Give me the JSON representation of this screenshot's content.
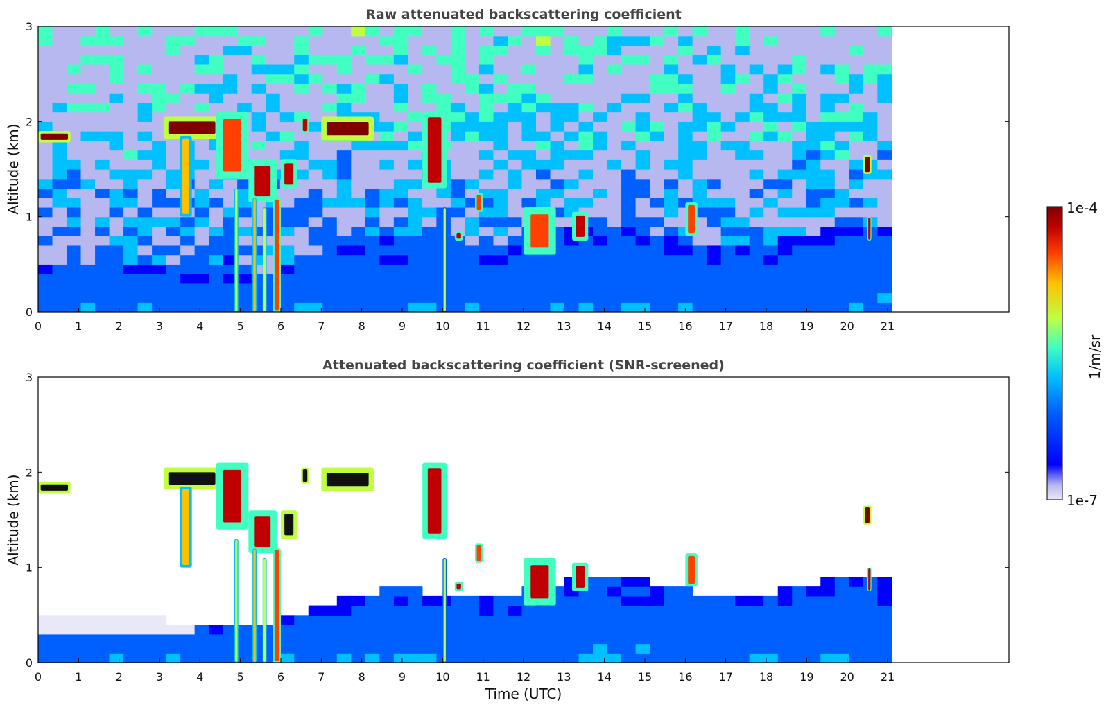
{
  "chart_data": [
    {
      "type": "heatmap",
      "title": "Raw attenuated backscattering coefficient",
      "xlabel": "",
      "ylabel": "Altitude (km)",
      "xlim": [
        0,
        24
      ],
      "ylim": [
        0,
        3
      ],
      "data_xmax": 21.1,
      "xticks": [
        "0",
        "1",
        "2",
        "3",
        "4",
        "5",
        "6",
        "7",
        "8",
        "9",
        "10",
        "11",
        "12",
        "13",
        "14",
        "15",
        "16",
        "17",
        "18",
        "19",
        "20",
        "21"
      ],
      "yticks": [
        "0",
        "1",
        "2",
        "3"
      ],
      "screened": false,
      "features": [
        {
          "kind": "cloud",
          "x0": 0.0,
          "x1": 0.8,
          "y0": 1.78,
          "y1": 1.9,
          "intensity": 0.95
        },
        {
          "kind": "cloud",
          "x0": 3.1,
          "x1": 4.5,
          "y0": 1.82,
          "y1": 2.05,
          "intensity": 0.95
        },
        {
          "kind": "cloud",
          "x0": 3.5,
          "x1": 3.8,
          "y0": 1.0,
          "y1": 1.85,
          "intensity": 0.7
        },
        {
          "kind": "cloud",
          "x0": 4.4,
          "x1": 5.2,
          "y0": 1.4,
          "y1": 2.1,
          "intensity": 0.8
        },
        {
          "kind": "cloud",
          "x0": 5.2,
          "x1": 5.9,
          "y0": 1.15,
          "y1": 1.6,
          "intensity": 0.85
        },
        {
          "kind": "cloud",
          "x0": 6.0,
          "x1": 6.4,
          "y0": 1.3,
          "y1": 1.6,
          "intensity": 0.85
        },
        {
          "kind": "cloud",
          "x0": 6.5,
          "x1": 6.7,
          "y0": 1.88,
          "y1": 2.05,
          "intensity": 0.9
        },
        {
          "kind": "cloud",
          "x0": 7.0,
          "x1": 8.3,
          "y0": 1.8,
          "y1": 2.05,
          "intensity": 0.97
        },
        {
          "kind": "cloud",
          "x0": 9.5,
          "x1": 10.1,
          "y0": 1.3,
          "y1": 2.1,
          "intensity": 0.9
        },
        {
          "kind": "cloud",
          "x0": 10.3,
          "x1": 10.5,
          "y0": 0.75,
          "y1": 0.85,
          "intensity": 0.85
        },
        {
          "kind": "cloud",
          "x0": 10.8,
          "x1": 11.0,
          "y0": 1.05,
          "y1": 1.25,
          "intensity": 0.8
        },
        {
          "kind": "cloud",
          "x0": 12.0,
          "x1": 12.8,
          "y0": 0.6,
          "y1": 1.1,
          "intensity": 0.8
        },
        {
          "kind": "cloud",
          "x0": 13.2,
          "x1": 13.6,
          "y0": 0.75,
          "y1": 1.05,
          "intensity": 0.85
        },
        {
          "kind": "cloud",
          "x0": 16.0,
          "x1": 16.3,
          "y0": 0.8,
          "y1": 1.15,
          "intensity": 0.75
        },
        {
          "kind": "cloud",
          "x0": 20.4,
          "x1": 20.6,
          "y0": 1.45,
          "y1": 1.65,
          "intensity": 0.95
        },
        {
          "kind": "cloud",
          "x0": 20.5,
          "x1": 20.6,
          "y0": 0.75,
          "y1": 1.0,
          "intensity": 0.9
        },
        {
          "kind": "column",
          "x0": 4.85,
          "x1": 4.95,
          "y0": 0.0,
          "y1": 1.3,
          "intensity": 0.6
        },
        {
          "kind": "column",
          "x0": 5.3,
          "x1": 5.4,
          "y0": 0.0,
          "y1": 1.2,
          "intensity": 0.65
        },
        {
          "kind": "column",
          "x0": 5.55,
          "x1": 5.65,
          "y0": 0.0,
          "y1": 1.1,
          "intensity": 0.6
        },
        {
          "kind": "column",
          "x0": 5.8,
          "x1": 6.0,
          "y0": 0.0,
          "y1": 1.2,
          "intensity": 0.8
        },
        {
          "kind": "column",
          "x0": 10.0,
          "x1": 10.1,
          "y0": 0.0,
          "y1": 1.1,
          "intensity": 0.55
        }
      ]
    },
    {
      "type": "heatmap",
      "title": "Attenuated backscattering coefficient (SNR-screened)",
      "xlabel": "Time (UTC)",
      "ylabel": "Altitude (km)",
      "xlim": [
        0,
        24
      ],
      "ylim": [
        0,
        3
      ],
      "data_xmax": 21.1,
      "xticks": [
        "0",
        "1",
        "2",
        "3",
        "4",
        "5",
        "6",
        "7",
        "8",
        "9",
        "10",
        "11",
        "12",
        "13",
        "14",
        "15",
        "16",
        "17",
        "18",
        "19",
        "20",
        "21"
      ],
      "yticks": [
        "0",
        "1",
        "2",
        "3"
      ],
      "screened": true,
      "features": [
        {
          "kind": "cloud",
          "x0": 0.0,
          "x1": 0.8,
          "y0": 1.78,
          "y1": 1.9,
          "intensity": 0.99
        },
        {
          "kind": "cloud",
          "x0": 3.1,
          "x1": 4.5,
          "y0": 1.82,
          "y1": 2.05,
          "intensity": 0.99
        },
        {
          "kind": "cloud",
          "x0": 3.5,
          "x1": 3.8,
          "y0": 1.0,
          "y1": 1.85,
          "intensity": 0.7
        },
        {
          "kind": "cloud",
          "x0": 4.4,
          "x1": 5.2,
          "y0": 1.4,
          "y1": 2.1,
          "intensity": 0.85
        },
        {
          "kind": "cloud",
          "x0": 5.2,
          "x1": 5.9,
          "y0": 1.15,
          "y1": 1.6,
          "intensity": 0.9
        },
        {
          "kind": "cloud",
          "x0": 6.0,
          "x1": 6.4,
          "y0": 1.3,
          "y1": 1.6,
          "intensity": 0.99
        },
        {
          "kind": "cloud",
          "x0": 6.5,
          "x1": 6.7,
          "y0": 1.88,
          "y1": 2.05,
          "intensity": 0.99
        },
        {
          "kind": "cloud",
          "x0": 7.0,
          "x1": 8.3,
          "y0": 1.8,
          "y1": 2.05,
          "intensity": 0.99
        },
        {
          "kind": "cloud",
          "x0": 9.5,
          "x1": 10.1,
          "y0": 1.3,
          "y1": 2.1,
          "intensity": 0.9
        },
        {
          "kind": "cloud",
          "x0": 10.3,
          "x1": 10.5,
          "y0": 0.75,
          "y1": 0.85,
          "intensity": 0.85
        },
        {
          "kind": "cloud",
          "x0": 10.8,
          "x1": 11.0,
          "y0": 1.05,
          "y1": 1.25,
          "intensity": 0.8
        },
        {
          "kind": "cloud",
          "x0": 12.0,
          "x1": 12.8,
          "y0": 0.6,
          "y1": 1.1,
          "intensity": 0.85
        },
        {
          "kind": "cloud",
          "x0": 13.2,
          "x1": 13.6,
          "y0": 0.75,
          "y1": 1.05,
          "intensity": 0.85
        },
        {
          "kind": "cloud",
          "x0": 16.0,
          "x1": 16.3,
          "y0": 0.8,
          "y1": 1.15,
          "intensity": 0.75
        },
        {
          "kind": "cloud",
          "x0": 20.4,
          "x1": 20.6,
          "y0": 1.45,
          "y1": 1.65,
          "intensity": 0.95
        },
        {
          "kind": "cloud",
          "x0": 20.5,
          "x1": 20.6,
          "y0": 0.75,
          "y1": 1.0,
          "intensity": 0.9
        },
        {
          "kind": "column",
          "x0": 4.85,
          "x1": 4.95,
          "y0": 0.0,
          "y1": 1.3,
          "intensity": 0.6
        },
        {
          "kind": "column",
          "x0": 5.3,
          "x1": 5.4,
          "y0": 0.0,
          "y1": 1.2,
          "intensity": 0.65
        },
        {
          "kind": "column",
          "x0": 5.55,
          "x1": 5.65,
          "y0": 0.0,
          "y1": 1.1,
          "intensity": 0.6
        },
        {
          "kind": "column",
          "x0": 5.8,
          "x1": 6.0,
          "y0": 0.0,
          "y1": 1.2,
          "intensity": 0.8
        },
        {
          "kind": "column",
          "x0": 10.0,
          "x1": 10.1,
          "y0": 0.0,
          "y1": 1.1,
          "intensity": 0.55
        }
      ]
    }
  ],
  "colorbar": {
    "label": "1/m/sr",
    "max_label": "1e-4",
    "min_label": "1e-7",
    "min_value": 1e-07,
    "max_value": 0.0001,
    "scale": "log",
    "colormap": "jet",
    "colors": [
      "#e8e8f8",
      "#b8b8f0",
      "#0000ff",
      "#0060ff",
      "#00c0ff",
      "#40ffc0",
      "#c0ff40",
      "#ffc000",
      "#ff4000",
      "#c00000",
      "#800000"
    ]
  }
}
